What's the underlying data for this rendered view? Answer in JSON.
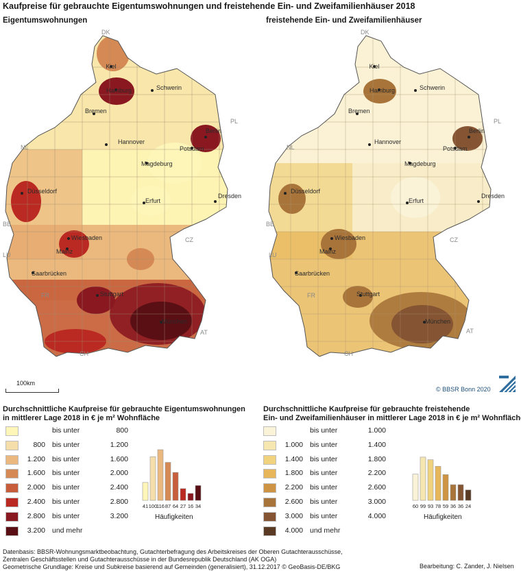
{
  "title": "Kaufpreise für gebrauchte Eigentumswohnungen und freistehende Ein- und Zweifamilienhäuser 2018",
  "map_left": {
    "title": "Eigentumswohnungen",
    "cities": [
      "Kiel",
      "Hamburg",
      "Schwerin",
      "Bremen",
      "Hannover",
      "Berlin",
      "Potsdam",
      "Magdeburg",
      "Düsseldorf",
      "Erfurt",
      "Dresden",
      "Wiesbaden",
      "Mainz",
      "Saarbrücken",
      "Stuttgart",
      "München"
    ],
    "countries": [
      "DK",
      "PL",
      "NL",
      "BE",
      "LU",
      "CZ",
      "FR",
      "AT",
      "CH"
    ]
  },
  "map_right": {
    "title": "freistehende Ein- und Zweifamilienhäuser",
    "cities": [
      "Kiel",
      "Hamburg",
      "Schwerin",
      "Bremen",
      "Hannover",
      "Berlin",
      "Potsdam",
      "Magdeburg",
      "Düsseldorf",
      "Erfurt",
      "Dresden",
      "Wiesbaden",
      "Mainz",
      "Saarbrücken",
      "Stuttgart",
      "München"
    ],
    "countries": [
      "DK",
      "PL",
      "NL",
      "BE",
      "LU",
      "CZ",
      "FR",
      "AT",
      "CH"
    ]
  },
  "scale_bar": "100km",
  "copyright": "© BBSR Bonn 2020",
  "legend_left": {
    "title_line1": "Durchschnittliche Kaufpreise für gebrauchte Eigentumswohnungen",
    "title_line2": "in mittlerer Lage 2018 in € je m² Wohnfläche",
    "classes": [
      {
        "lo": "",
        "mid": "bis unter",
        "hi": "800",
        "color": "#fdf6b8"
      },
      {
        "lo": "800",
        "mid": "bis unter",
        "hi": "1.200",
        "color": "#f5deaa"
      },
      {
        "lo": "1.200",
        "mid": "bis unter",
        "hi": "1.600",
        "color": "#ebb97f"
      },
      {
        "lo": "1.600",
        "mid": "bis unter",
        "hi": "2.000",
        "color": "#d58a55"
      },
      {
        "lo": "2.000",
        "mid": "bis unter",
        "hi": "2.400",
        "color": "#c75d3a"
      },
      {
        "lo": "2.400",
        "mid": "bis unter",
        "hi": "2.800",
        "color": "#bb2a22"
      },
      {
        "lo": "2.800",
        "mid": "bis unter",
        "hi": "3.200",
        "color": "#8a1820"
      },
      {
        "lo": "3.200",
        "mid": "und mehr",
        "hi": "",
        "color": "#5a0f14"
      }
    ],
    "histogram_counts": [
      41,
      100,
      116,
      87,
      64,
      27,
      16,
      34
    ],
    "histogram_label": "Häufigkeiten"
  },
  "legend_right": {
    "title_line1": "Durchschnittliche Kaufpreise für gebrauchte  freistehende",
    "title_line2": "Ein- und Zweifamilienhäuser in mittlerer Lage 2018 in € je m² Wohnfläche",
    "classes": [
      {
        "lo": "",
        "mid": "bis unter",
        "hi": "1.000",
        "color": "#fbf3d8"
      },
      {
        "lo": "1.000",
        "mid": "bis unter",
        "hi": "1.400",
        "color": "#f6e6b0"
      },
      {
        "lo": "1.400",
        "mid": "bis unter",
        "hi": "1.800",
        "color": "#f1d27e"
      },
      {
        "lo": "1.800",
        "mid": "bis unter",
        "hi": "2.200",
        "color": "#e7b65a"
      },
      {
        "lo": "2.200",
        "mid": "bis unter",
        "hi": "2.600",
        "color": "#cf9443"
      },
      {
        "lo": "2.600",
        "mid": "bis unter",
        "hi": "3.000",
        "color": "#a8743a"
      },
      {
        "lo": "3.000",
        "mid": "bis unter",
        "hi": "4.000",
        "color": "#855432"
      },
      {
        "lo": "4.000",
        "mid": "und mehr",
        "hi": "",
        "color": "#5b3a23"
      }
    ],
    "histogram_counts": [
      60,
      99,
      93,
      78,
      59,
      36,
      36,
      24
    ],
    "histogram_label": "Häufigkeiten"
  },
  "footer": {
    "line1": "Datenbasis: BBSR-Wohnungsmarktbeobachtung, Gutachterbefragung des Arbeitskreises der Oberen Gutachterausschüsse,",
    "line2": "Zentralen Geschäftsstellen und Gutachterausschüsse in der Bundesrepublik Deutschland (AK OGA)",
    "line3": "Geometrische Grundlage: Kreise und Subkreise basierend auf Gemeinden (generalisiert), 31.12.2017 © GeoBasis-DE/BKG",
    "credit": "Bearbeitung: C. Zander, J. Nielsen"
  }
}
